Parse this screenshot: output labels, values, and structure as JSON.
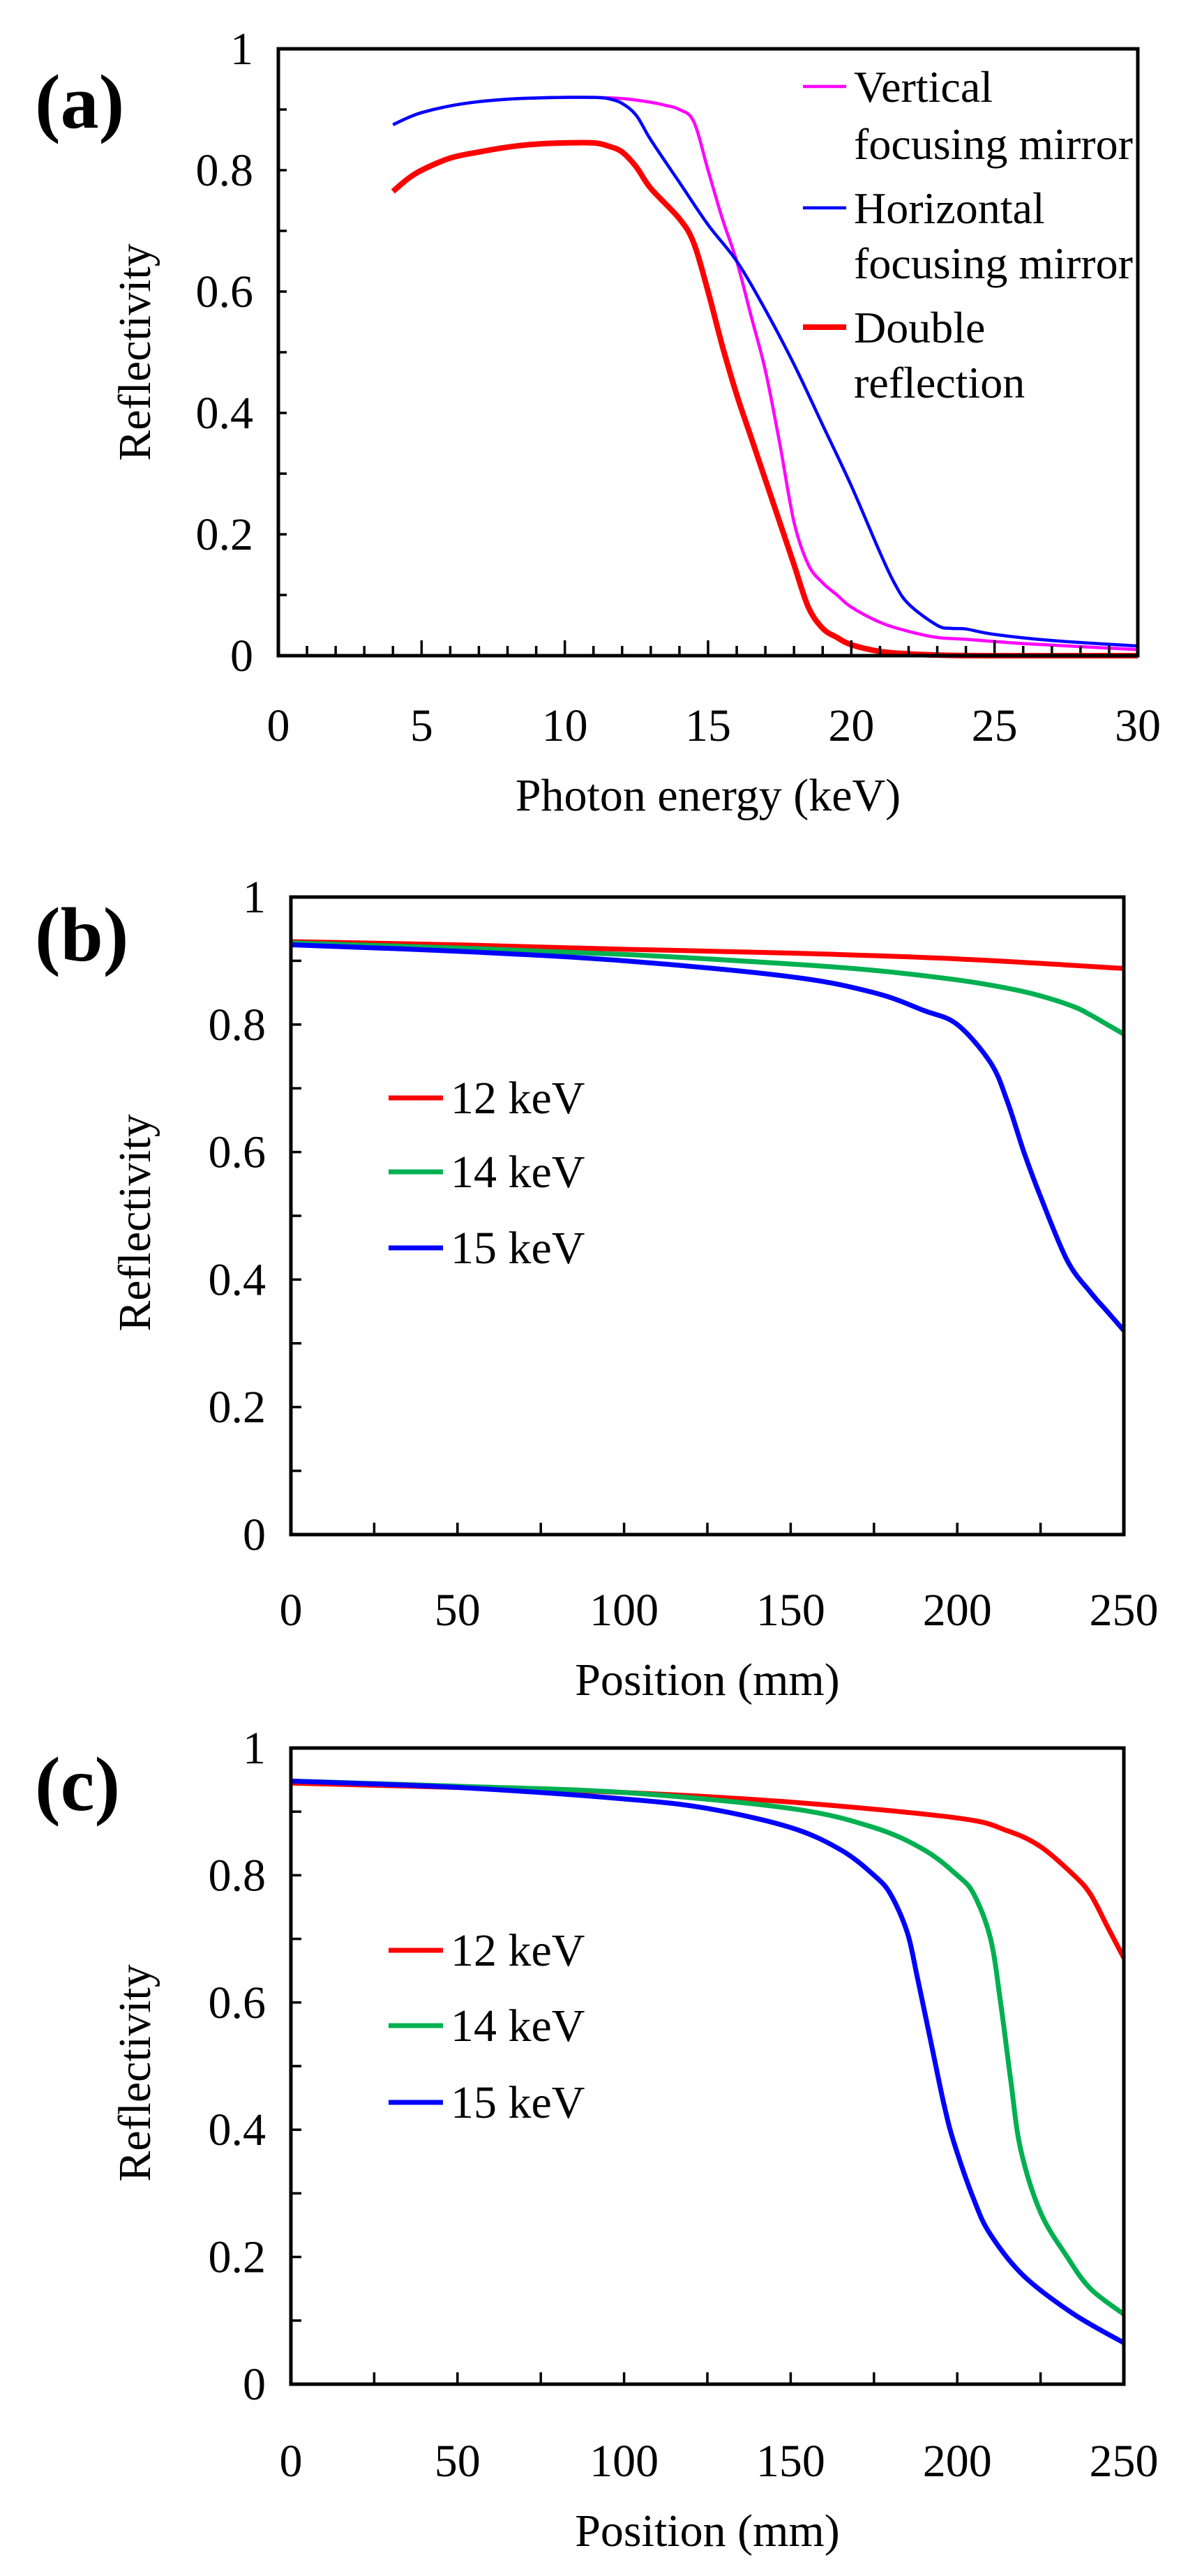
{
  "chart_data": [
    {
      "panel_label": "(a)",
      "type": "line",
      "xlabel": "Photon energy (keV)",
      "ylabel": "Reflectivity",
      "xlim": [
        0,
        30
      ],
      "ylim": [
        0,
        1
      ],
      "xticks": [
        "0",
        "5",
        "10",
        "15",
        "20",
        "25",
        "30"
      ],
      "yticks": [
        "0",
        "0.2",
        "0.4",
        "0.6",
        "0.8",
        "1"
      ],
      "legend_position": "top-right",
      "series": [
        {
          "name": "Vertical focusing mirror",
          "legend_lines": [
            "Vertical",
            "focusing mirror"
          ],
          "color": "#ff00ff",
          "x": [
            4,
            4.5,
            5,
            6,
            7,
            8,
            9,
            10,
            11,
            12,
            13,
            13.5,
            14,
            14.5,
            15,
            15.5,
            16,
            16.5,
            17,
            17.5,
            18,
            18.5,
            19,
            19.5,
            20,
            21,
            22,
            23,
            24,
            26,
            28,
            30
          ],
          "y": [
            0.875,
            0.886,
            0.895,
            0.906,
            0.913,
            0.917,
            0.919,
            0.92,
            0.92,
            0.918,
            0.912,
            0.907,
            0.9,
            0.88,
            0.8,
            0.72,
            0.65,
            0.56,
            0.47,
            0.35,
            0.22,
            0.15,
            0.12,
            0.1,
            0.08,
            0.055,
            0.04,
            0.03,
            0.027,
            0.02,
            0.015,
            0.01
          ]
        },
        {
          "name": "Horizontal focusing mirror",
          "legend_lines": [
            "Horizontal",
            "focusing mirror"
          ],
          "color": "#0000ff",
          "x": [
            4,
            4.5,
            5,
            6,
            7,
            8,
            9,
            10,
            11,
            11.5,
            12,
            12.5,
            13,
            14,
            15,
            16,
            17,
            18,
            19,
            20,
            21,
            21.5,
            22,
            23,
            23.5,
            24,
            25,
            27,
            30
          ],
          "y": [
            0.875,
            0.886,
            0.895,
            0.906,
            0.913,
            0.917,
            0.919,
            0.92,
            0.92,
            0.918,
            0.91,
            0.89,
            0.85,
            0.78,
            0.71,
            0.65,
            0.57,
            0.48,
            0.38,
            0.28,
            0.17,
            0.12,
            0.085,
            0.05,
            0.045,
            0.044,
            0.035,
            0.025,
            0.016
          ]
        },
        {
          "name": "Double reflection",
          "legend_lines": [
            "Double",
            "reflection"
          ],
          "color": "#ff0000",
          "x": [
            4,
            4.5,
            5,
            6,
            7,
            8,
            9,
            10,
            11,
            11.5,
            12,
            12.5,
            13,
            14,
            14.5,
            15,
            15.5,
            16,
            16.5,
            17,
            17.5,
            18,
            18.5,
            19,
            19.5,
            20,
            21,
            22,
            23,
            25,
            30
          ],
          "y": [
            0.765,
            0.785,
            0.8,
            0.82,
            0.83,
            0.838,
            0.843,
            0.845,
            0.845,
            0.84,
            0.83,
            0.805,
            0.77,
            0.72,
            0.68,
            0.6,
            0.51,
            0.43,
            0.36,
            0.29,
            0.22,
            0.15,
            0.08,
            0.045,
            0.03,
            0.018,
            0.007,
            0.003,
            0.001,
            0,
            0
          ]
        }
      ]
    },
    {
      "panel_label": "(b)",
      "type": "line",
      "xlabel": "Position (mm)",
      "ylabel": "Reflectivity",
      "xlim": [
        0,
        250
      ],
      "ylim": [
        0,
        1
      ],
      "xticks": [
        "0",
        "50",
        "100",
        "150",
        "200",
        "250"
      ],
      "yticks": [
        "0",
        "0.2",
        "0.4",
        "0.6",
        "0.8",
        "1"
      ],
      "legend_position": "middle-left",
      "series": [
        {
          "name": "12 keV",
          "color": "#ff0000",
          "x": [
            0,
            50,
            100,
            150,
            200,
            250
          ],
          "y": [
            0.93,
            0.925,
            0.918,
            0.912,
            0.903,
            0.888
          ]
        },
        {
          "name": "14 keV",
          "color": "#00b050",
          "x": [
            0,
            50,
            100,
            150,
            175,
            200,
            215,
            225,
            235,
            240,
            245,
            250
          ],
          "y": [
            0.928,
            0.92,
            0.91,
            0.895,
            0.885,
            0.87,
            0.857,
            0.845,
            0.828,
            0.815,
            0.8,
            0.785
          ]
        },
        {
          "name": "15 keV",
          "color": "#0000ff",
          "x": [
            0,
            50,
            100,
            150,
            175,
            190,
            200,
            210,
            215,
            220,
            225,
            233,
            240,
            245,
            250
          ],
          "y": [
            0.925,
            0.915,
            0.9,
            0.875,
            0.85,
            0.822,
            0.8,
            0.74,
            0.68,
            0.6,
            0.53,
            0.43,
            0.38,
            0.35,
            0.32
          ]
        }
      ]
    },
    {
      "panel_label": "(c)",
      "type": "line",
      "xlabel": "Position (mm)",
      "ylabel": "Reflectivity",
      "xlim": [
        0,
        250
      ],
      "ylim": [
        0,
        1
      ],
      "xticks": [
        "0",
        "50",
        "100",
        "150",
        "200",
        "250"
      ],
      "yticks": [
        "0",
        "0.2",
        "0.4",
        "0.6",
        "0.8",
        "1"
      ],
      "legend_position": "middle-left",
      "series": [
        {
          "name": "12 keV",
          "color": "#ff0000",
          "x": [
            0,
            50,
            100,
            150,
            200,
            215,
            225,
            235,
            240,
            245,
            250
          ],
          "y": [
            0.945,
            0.938,
            0.93,
            0.915,
            0.89,
            0.87,
            0.845,
            0.8,
            0.77,
            0.72,
            0.67
          ]
        },
        {
          "name": "14 keV",
          "color": "#00b050",
          "x": [
            0,
            50,
            100,
            150,
            175,
            190,
            200,
            205,
            210,
            213,
            216,
            219,
            225,
            233,
            240,
            250
          ],
          "y": [
            0.948,
            0.94,
            0.93,
            0.905,
            0.875,
            0.84,
            0.8,
            0.77,
            0.7,
            0.6,
            0.48,
            0.37,
            0.27,
            0.2,
            0.15,
            0.11
          ]
        },
        {
          "name": "15 keV",
          "color": "#0000ff",
          "x": [
            0,
            50,
            100,
            125,
            150,
            165,
            175,
            180,
            185,
            188,
            192,
            196,
            199,
            205,
            210,
            220,
            235,
            250
          ],
          "y": [
            0.948,
            0.938,
            0.92,
            0.905,
            0.875,
            0.84,
            0.8,
            0.77,
            0.71,
            0.64,
            0.54,
            0.44,
            0.38,
            0.29,
            0.235,
            0.17,
            0.11,
            0.065
          ]
        }
      ]
    }
  ]
}
